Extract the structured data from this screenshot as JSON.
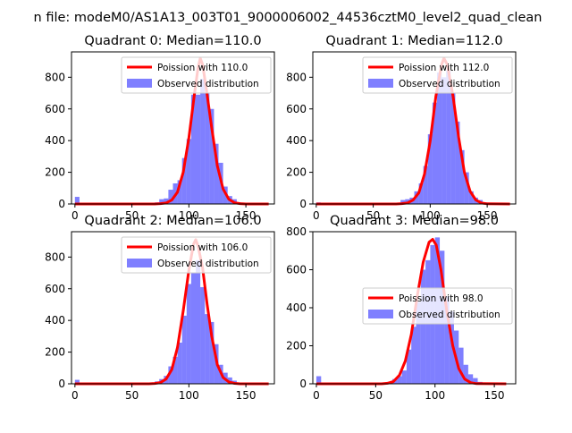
{
  "figure_title": "n file: modeM0/AS1A13_003T01_9000006002_44536cztM0_level2_quad_clean",
  "chart_data": [
    {
      "type": "bar",
      "title": "Quadrant 0: Median=110.0",
      "xlim": [
        -3,
        175
      ],
      "ylim": [
        0,
        960
      ],
      "xticks": [
        0,
        50,
        100,
        150
      ],
      "yticks": [
        0,
        200,
        400,
        600,
        800
      ],
      "legend_position": "top-right",
      "legend": [
        "Poission with 110.0",
        "Observed distribution"
      ],
      "series": [
        {
          "name": "Poission with 110.0",
          "kind": "line",
          "color": "#ff0000",
          "x": [
            0,
            70,
            75,
            80,
            85,
            90,
            95,
            100,
            105,
            108,
            110,
            112,
            115,
            120,
            125,
            130,
            135,
            140,
            145,
            150,
            170
          ],
          "y": [
            0,
            0,
            2,
            6,
            25,
            75,
            200,
            420,
            700,
            860,
            920,
            880,
            740,
            480,
            240,
            95,
            30,
            8,
            2,
            0,
            0
          ]
        },
        {
          "name": "Observed distribution",
          "kind": "hist",
          "color": "#0000ff",
          "bins": [
            [
              0,
              4,
              45
            ],
            [
              70,
              74,
              10
            ],
            [
              74,
              78,
              30
            ],
            [
              78,
              82,
              35
            ],
            [
              82,
              86,
              90
            ],
            [
              86,
              90,
              130
            ],
            [
              90,
              94,
              150
            ],
            [
              94,
              98,
              290
            ],
            [
              98,
              102,
              410
            ],
            [
              102,
              106,
              690
            ],
            [
              106,
              110,
              690
            ],
            [
              110,
              114,
              790
            ],
            [
              114,
              118,
              700
            ],
            [
              118,
              122,
              600
            ],
            [
              122,
              126,
              380
            ],
            [
              126,
              130,
              260
            ],
            [
              130,
              134,
              110
            ],
            [
              134,
              138,
              50
            ],
            [
              138,
              142,
              30
            ],
            [
              142,
              146,
              10
            ]
          ]
        }
      ]
    },
    {
      "type": "bar",
      "title": "Quadrant 1: Median=112.0",
      "xlim": [
        -3,
        175
      ],
      "ylim": [
        0,
        960
      ],
      "xticks": [
        0,
        50,
        100,
        150
      ],
      "yticks": [
        0,
        200,
        400,
        600,
        800
      ],
      "legend_position": "top-right",
      "legend": [
        "Poission with 112.0",
        "Observed distribution"
      ],
      "series": [
        {
          "name": "Poission with 112.0",
          "kind": "line",
          "color": "#ff0000",
          "x": [
            0,
            70,
            75,
            80,
            85,
            90,
            95,
            100,
            105,
            110,
            112,
            115,
            120,
            125,
            130,
            135,
            140,
            145,
            150,
            170
          ],
          "y": [
            0,
            0,
            2,
            6,
            25,
            70,
            190,
            400,
            680,
            880,
            920,
            880,
            680,
            420,
            200,
            80,
            25,
            6,
            1,
            0
          ]
        },
        {
          "name": "Observed distribution",
          "kind": "hist",
          "color": "#0000ff",
          "bins": [
            [
              0,
              4,
              10
            ],
            [
              74,
              78,
              25
            ],
            [
              78,
              82,
              30
            ],
            [
              82,
              86,
              40
            ],
            [
              86,
              90,
              80
            ],
            [
              90,
              94,
              130
            ],
            [
              94,
              98,
              240
            ],
            [
              98,
              102,
              440
            ],
            [
              102,
              106,
              640
            ],
            [
              106,
              110,
              830
            ],
            [
              110,
              114,
              800
            ],
            [
              114,
              118,
              840
            ],
            [
              118,
              122,
              700
            ],
            [
              122,
              126,
              520
            ],
            [
              126,
              130,
              340
            ],
            [
              130,
              134,
              200
            ],
            [
              134,
              138,
              80
            ],
            [
              138,
              142,
              40
            ],
            [
              142,
              146,
              25
            ],
            [
              146,
              150,
              10
            ]
          ]
        }
      ]
    },
    {
      "type": "bar",
      "title": "Quadrant 2: Median=106.0",
      "xlim": [
        -3,
        175
      ],
      "ylim": [
        0,
        960
      ],
      "xticks": [
        0,
        50,
        100,
        150
      ],
      "yticks": [
        0,
        200,
        400,
        600,
        800
      ],
      "legend_position": "top-right",
      "legend": [
        "Poission with 106.0",
        "Observed distribution"
      ],
      "series": [
        {
          "name": "Poission with 106.0",
          "kind": "line",
          "color": "#ff0000",
          "x": [
            0,
            65,
            70,
            75,
            80,
            85,
            90,
            95,
            100,
            104,
            106,
            108,
            112,
            116,
            120,
            125,
            130,
            135,
            140,
            145,
            170
          ],
          "y": [
            0,
            0,
            2,
            8,
            30,
            90,
            230,
            460,
            720,
            880,
            910,
            870,
            730,
            500,
            300,
            120,
            40,
            12,
            3,
            0,
            0
          ]
        },
        {
          "name": "Observed distribution",
          "kind": "hist",
          "color": "#0000ff",
          "bins": [
            [
              0,
              4,
              25
            ],
            [
              70,
              74,
              15
            ],
            [
              74,
              78,
              30
            ],
            [
              78,
              82,
              50
            ],
            [
              82,
              86,
              110
            ],
            [
              86,
              90,
              170
            ],
            [
              90,
              94,
              260
            ],
            [
              94,
              98,
              430
            ],
            [
              98,
              102,
              630
            ],
            [
              102,
              106,
              700
            ],
            [
              106,
              110,
              780
            ],
            [
              110,
              114,
              610
            ],
            [
              114,
              118,
              440
            ],
            [
              118,
              122,
              390
            ],
            [
              122,
              126,
              250
            ],
            [
              126,
              130,
              120
            ],
            [
              130,
              134,
              70
            ],
            [
              134,
              138,
              40
            ],
            [
              138,
              142,
              20
            ]
          ]
        }
      ]
    },
    {
      "type": "bar",
      "title": "Quadrant 3: Median=98.0",
      "xlim": [
        -3,
        168
      ],
      "ylim": [
        0,
        800
      ],
      "xticks": [
        0,
        50,
        100,
        150
      ],
      "yticks": [
        0,
        200,
        400,
        600,
        800
      ],
      "legend_position": "center-right",
      "legend": [
        "Poission with 98.0",
        "Observed distribution"
      ],
      "series": [
        {
          "name": "Poission with 98.0",
          "kind": "line",
          "color": "#ff0000",
          "x": [
            0,
            55,
            60,
            65,
            70,
            75,
            80,
            85,
            90,
            95,
            98,
            101,
            105,
            110,
            115,
            120,
            125,
            130,
            135,
            160
          ],
          "y": [
            0,
            0,
            3,
            12,
            45,
            120,
            260,
            460,
            640,
            745,
            760,
            730,
            600,
            380,
            200,
            80,
            25,
            6,
            1,
            0
          ]
        },
        {
          "name": "Observed distribution",
          "kind": "hist",
          "color": "#0000ff",
          "bins": [
            [
              0,
              4,
              40
            ],
            [
              60,
              64,
              10
            ],
            [
              64,
              68,
              25
            ],
            [
              68,
              72,
              40
            ],
            [
              72,
              76,
              70
            ],
            [
              76,
              80,
              180
            ],
            [
              80,
              84,
              300
            ],
            [
              84,
              88,
              430
            ],
            [
              88,
              92,
              600
            ],
            [
              92,
              96,
              650
            ],
            [
              96,
              100,
              730
            ],
            [
              100,
              104,
              770
            ],
            [
              104,
              108,
              700
            ],
            [
              108,
              112,
              460
            ],
            [
              112,
              116,
              380
            ],
            [
              116,
              120,
              280
            ],
            [
              120,
              124,
              190
            ],
            [
              124,
              128,
              100
            ],
            [
              128,
              132,
              50
            ],
            [
              132,
              136,
              30
            ],
            [
              136,
              140,
              10
            ]
          ]
        }
      ]
    }
  ]
}
